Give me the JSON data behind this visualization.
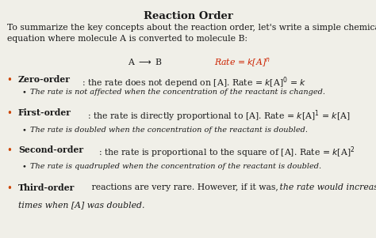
{
  "title": "Reaction Order",
  "bg_color": "#f0efe8",
  "title_color": "#1a1a1a",
  "bullet_color": "#cc4400",
  "text_color": "#1a1a1a",
  "red_color": "#cc2200",
  "fig_width": 4.74,
  "fig_height": 3.01,
  "dpi": 100
}
